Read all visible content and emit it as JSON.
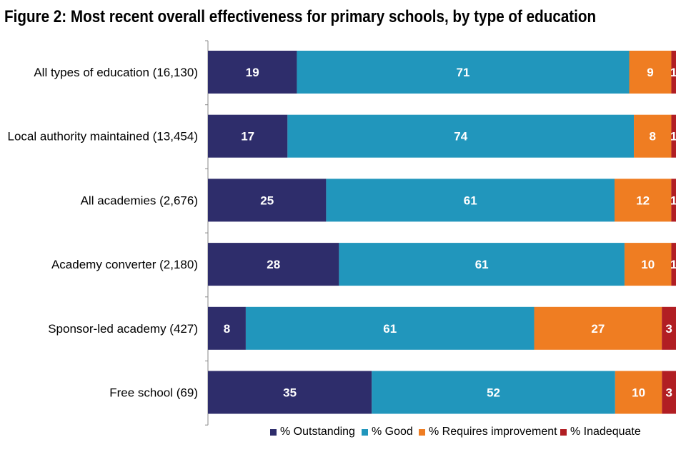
{
  "title": "Figure 2: Most recent overall effectiveness for primary schools, by type of education",
  "colors": {
    "outstanding": "#2e2d6b",
    "good": "#2196bc",
    "requires_improvement": "#ef7d22",
    "inadequate": "#b11e23",
    "axis": "#888888"
  },
  "chart_data": {
    "type": "bar",
    "orientation": "horizontal",
    "stacked": true,
    "title": "Figure 2: Most recent overall effectiveness for primary schools, by type of education",
    "xlabel": "",
    "ylabel": "",
    "xlim": [
      0,
      100
    ],
    "categories": [
      "All types of education (16,130)",
      "Local authority maintained (13,454)",
      "All academies (2,676)",
      "Academy converter (2,180)",
      "Sponsor-led academy (427)",
      "Free school (69)"
    ],
    "series": [
      {
        "name": "% Outstanding",
        "key": "outstanding",
        "values": [
          19,
          17,
          25,
          28,
          8,
          35
        ]
      },
      {
        "name": "% Good",
        "key": "good",
        "values": [
          71,
          74,
          61,
          61,
          61,
          52
        ]
      },
      {
        "name": "% Requires improvement",
        "key": "requires_improvement",
        "values": [
          9,
          8,
          12,
          10,
          27,
          10
        ]
      },
      {
        "name": "% Inadequate",
        "key": "inadequate",
        "values": [
          1,
          1,
          1,
          1,
          3,
          3
        ]
      }
    ],
    "legend_position": "bottom",
    "grid": false
  }
}
